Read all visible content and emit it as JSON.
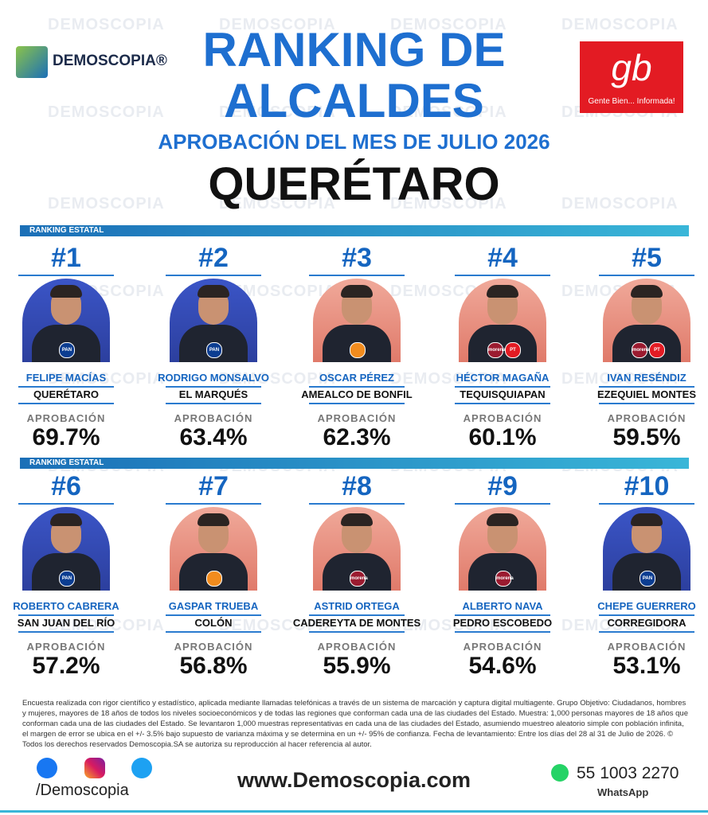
{
  "watermark": "DEMOSCOPIA",
  "header": {
    "logo": "DEMOSCOPIA®",
    "title_line1": "RANKING DE",
    "title_line2": "ALCALDES",
    "subtitle": "APROBACIÓN DEL MES DE JULIO 2026",
    "state": "QUERÉTARO",
    "partner_logo": "gb",
    "partner_tagline": "Gente Bien... Informada!"
  },
  "sections": [
    {
      "label": "RANKING ESTATAL",
      "entries": [
        {
          "rank": "#1",
          "name": "FELIPE MACÍAS",
          "municipality": "QUERÉTARO",
          "metric": "APROBACIÓN",
          "value": "69.7%",
          "badges": [
            "PAN"
          ]
        },
        {
          "rank": "#2",
          "name": "RODRIGO MONSALVO",
          "municipality": "EL MARQUÉS",
          "metric": "APROBACIÓN",
          "value": "63.4%",
          "badges": [
            "PAN"
          ]
        },
        {
          "rank": "#3",
          "name": "OSCAR PÉREZ",
          "municipality": "AMEALCO DE BONFIL",
          "metric": "APROBACIÓN",
          "value": "62.3%",
          "badges": []
        },
        {
          "rank": "#4",
          "name": "HÉCTOR MAGAÑA",
          "municipality": "TEQUISQUIAPAN",
          "metric": "APROBACIÓN",
          "value": "60.1%",
          "badges": [
            "morena",
            "PT"
          ]
        },
        {
          "rank": "#5",
          "name": "IVAN RESÉNDIZ",
          "municipality": "EZEQUIEL MONTES",
          "metric": "APROBACIÓN",
          "value": "59.5%",
          "badges": [
            "morena",
            "PT"
          ]
        }
      ]
    },
    {
      "label": "RANKING ESTATAL",
      "entries": [
        {
          "rank": "#6",
          "name": "ROBERTO CABRERA",
          "municipality": "SAN JUAN DEL RÍO",
          "metric": "APROBACIÓN",
          "value": "57.2%",
          "badges": [
            "PAN"
          ]
        },
        {
          "rank": "#7",
          "name": "GASPAR TRUEBA",
          "municipality": "COLÓN",
          "metric": "APROBACIÓN",
          "value": "56.8%",
          "badges": []
        },
        {
          "rank": "#8",
          "name": "ASTRID ORTEGA",
          "municipality": "CADEREYTA DE MONTES",
          "metric": "APROBACIÓN",
          "value": "55.9%",
          "badges": [
            "morena"
          ]
        },
        {
          "rank": "#9",
          "name": "ALBERTO NAVA",
          "municipality": "PEDRO ESCOBEDO",
          "metric": "APROBACIÓN",
          "value": "54.6%",
          "badges": [
            "morena"
          ]
        },
        {
          "rank": "#10",
          "name": "CHEPE GUERRERO",
          "municipality": "CORREGIDORA",
          "metric": "APROBACIÓN",
          "value": "53.1%",
          "badges": [
            "PAN"
          ]
        }
      ]
    }
  ],
  "footer": {
    "methodology": "Encuesta realizada con rigor científico y estadístico, aplicada mediante llamadas telefónicas a través de un sistema de marcación y captura digital multiagente. Grupo Objetivo: Ciudadanos, hombres y mujeres, mayores de 18 años de todos los niveles socioeconómicos y de todas las regiones que conforman cada una de las ciudades del Estado. Muestra: 1,000 personas mayores de 18 años que conforman cada una de las ciudades del Estado. Se levantaron 1,000 muestras representativas en cada una de las ciudades del Estado, asumiendo muestreo aleatorio simple con población infinita, el margen de error se ubica en el +/- 3.5% bajo supuesto de varianza máxima y se determina en un +/- 95% de confianza. Fecha de levantamiento: Entre los días del 28 al 31 de Julio de 2026. © Todos los derechos reservados Demoscopia.SA se autoriza su reproducción al hacer referencia al autor.",
    "social_handle": "/Demoscopia",
    "website": "www.Demoscopia.com",
    "phone": "55 1003 2270",
    "phone_label": "WhatsApp"
  }
}
